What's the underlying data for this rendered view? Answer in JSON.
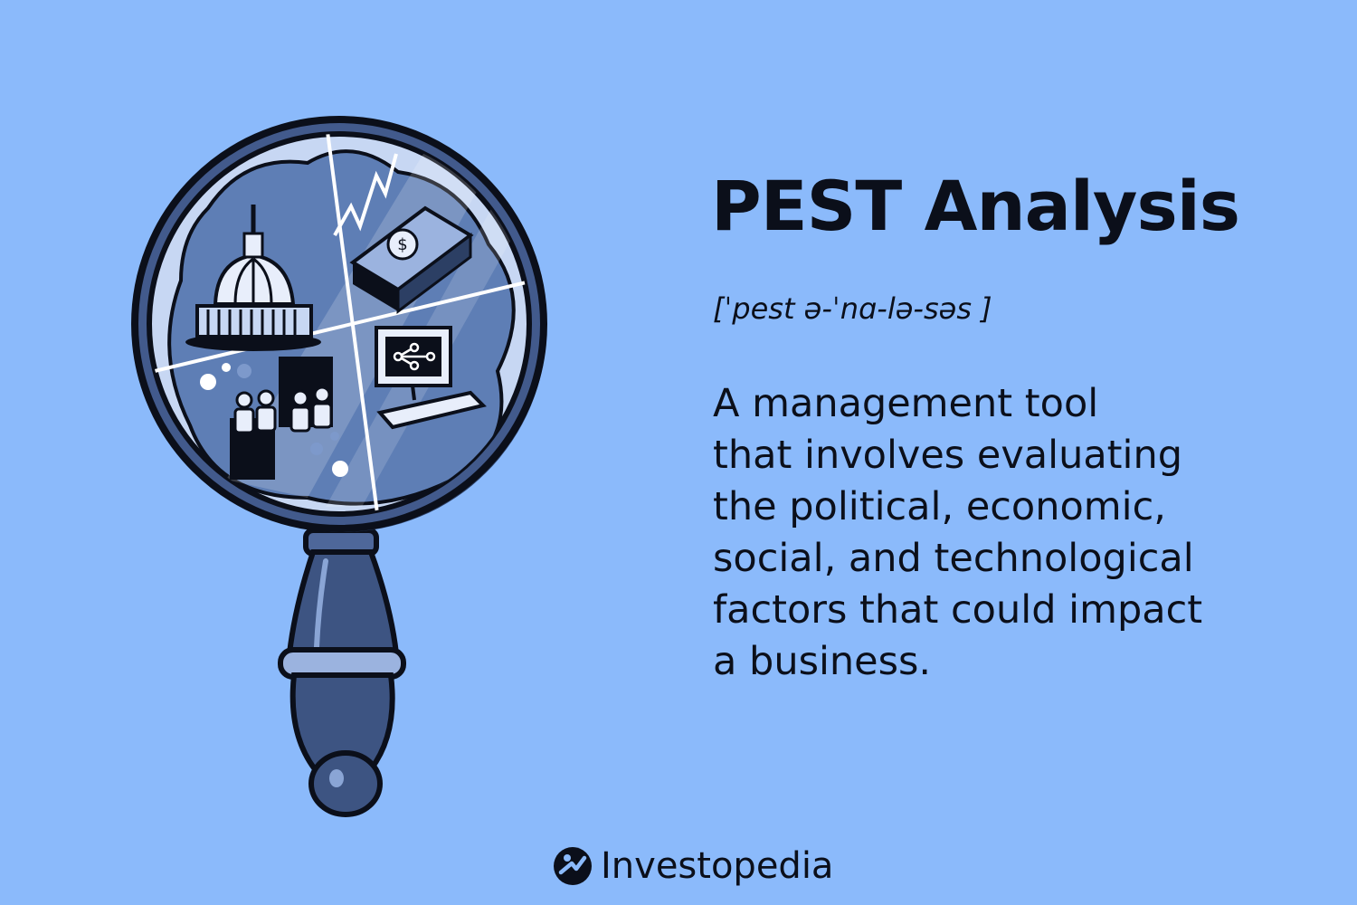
{
  "title": "PEST Analysis",
  "pronunciation": "[ˈpest ə-ˈnɑ-lə-səs ]",
  "definition_lines": [
    "A management tool",
    "that involves evaluating",
    "the political, economic,",
    "social, and technological",
    "factors that could impact",
    "a business."
  ],
  "brand": {
    "name": "Investopedia",
    "icon": "investopedia-logo-icon"
  },
  "illustration": {
    "icon": "magnifying-glass-icon",
    "quadrant_icons": [
      "capitol-dome-icon",
      "money-stack-icon",
      "people-icon",
      "computer-icon"
    ]
  },
  "colors": {
    "background": "#8bbafb",
    "ink": "#0b0f1a",
    "lens_fill": "#5e7eb5",
    "handle": "#3d5482",
    "brand_accent": "#2a4a82"
  }
}
